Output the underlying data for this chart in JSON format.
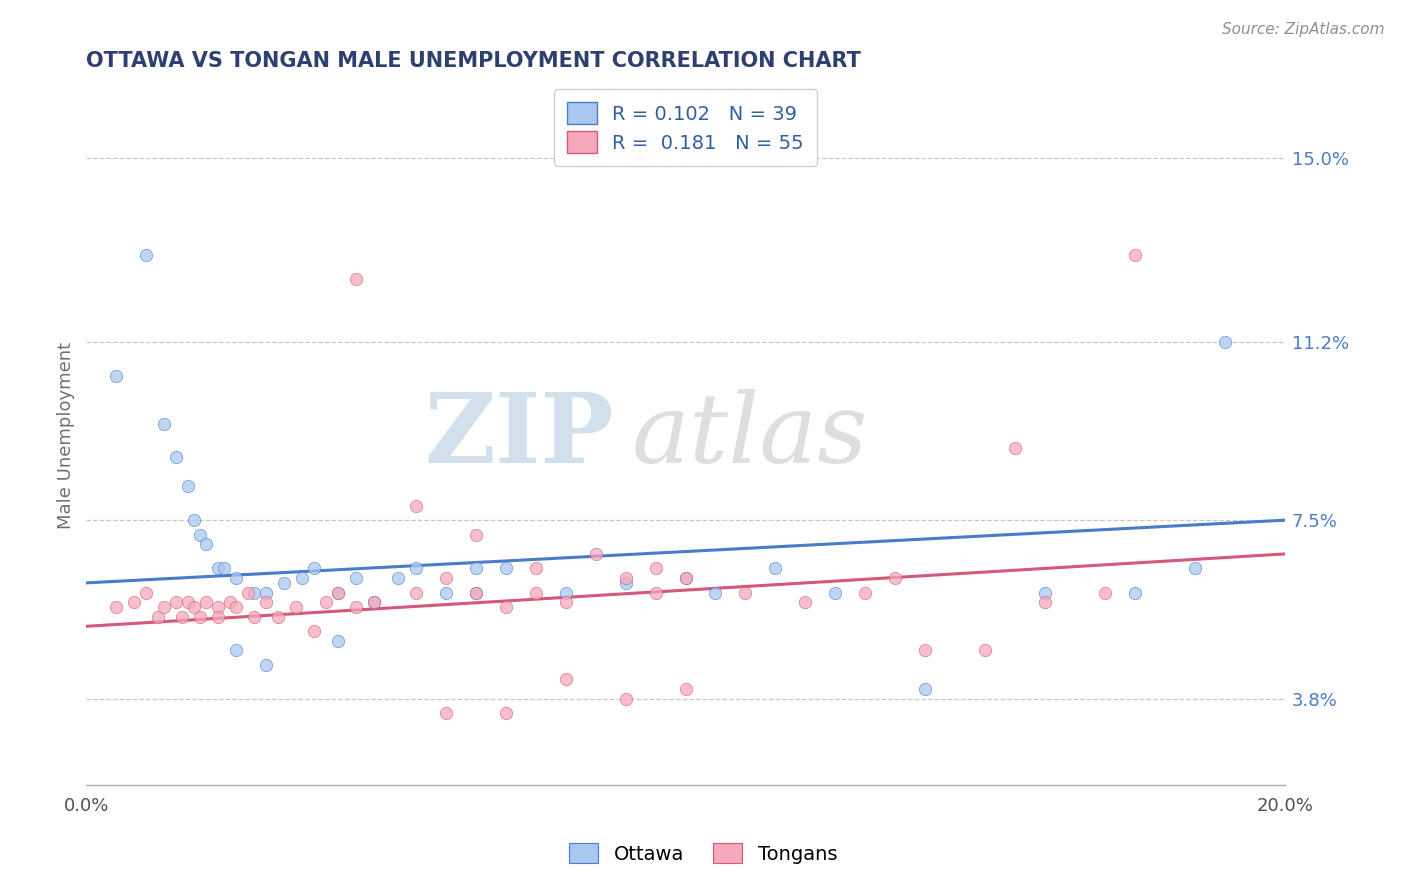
{
  "title": "OTTAWA VS TONGAN MALE UNEMPLOYMENT CORRELATION CHART",
  "source": "Source: ZipAtlas.com",
  "ylabel": "Male Unemployment",
  "xlim": [
    0.0,
    0.2
  ],
  "ylim": [
    0.02,
    0.165
  ],
  "right_yticks": [
    0.038,
    0.075,
    0.112,
    0.15
  ],
  "right_yticklabels": [
    "3.8%",
    "7.5%",
    "11.2%",
    "15.0%"
  ],
  "legend_r1": "0.102",
  "legend_n1": "39",
  "legend_r2": "0.181",
  "legend_n2": "55",
  "ottawa_color": "#a8c8f0",
  "tongans_color": "#f5a8bc",
  "ottawa_line_color": "#4a7cc7",
  "tongans_line_color": "#d45878",
  "title_color": "#2e4070",
  "source_color": "#909090",
  "grid_color": "#c8c8c8",
  "background_color": "#ffffff",
  "ottawa_x": [
    0.005,
    0.01,
    0.013,
    0.015,
    0.017,
    0.018,
    0.019,
    0.02,
    0.022,
    0.023,
    0.025,
    0.028,
    0.03,
    0.033,
    0.036,
    0.038,
    0.042,
    0.045,
    0.048,
    0.052,
    0.055,
    0.06,
    0.065,
    0.065,
    0.07,
    0.08,
    0.09,
    0.1,
    0.105,
    0.115,
    0.125,
    0.14,
    0.16,
    0.175,
    0.185,
    0.19,
    0.042,
    0.025,
    0.03
  ],
  "ottawa_y": [
    0.105,
    0.13,
    0.095,
    0.088,
    0.082,
    0.075,
    0.072,
    0.07,
    0.065,
    0.065,
    0.063,
    0.06,
    0.06,
    0.062,
    0.063,
    0.065,
    0.06,
    0.063,
    0.058,
    0.063,
    0.065,
    0.06,
    0.065,
    0.06,
    0.065,
    0.06,
    0.062,
    0.063,
    0.06,
    0.065,
    0.06,
    0.04,
    0.06,
    0.06,
    0.065,
    0.112,
    0.05,
    0.048,
    0.045
  ],
  "tongans_x": [
    0.005,
    0.008,
    0.01,
    0.012,
    0.013,
    0.015,
    0.016,
    0.017,
    0.018,
    0.019,
    0.02,
    0.022,
    0.022,
    0.024,
    0.025,
    0.027,
    0.028,
    0.03,
    0.032,
    0.035,
    0.038,
    0.04,
    0.042,
    0.045,
    0.048,
    0.055,
    0.06,
    0.065,
    0.07,
    0.075,
    0.08,
    0.09,
    0.095,
    0.1,
    0.11,
    0.12,
    0.135,
    0.155,
    0.16,
    0.17,
    0.175,
    0.13,
    0.14,
    0.15,
    0.055,
    0.065,
    0.075,
    0.085,
    0.095,
    0.045,
    0.06,
    0.07,
    0.08,
    0.09,
    0.1
  ],
  "tongans_y": [
    0.057,
    0.058,
    0.06,
    0.055,
    0.057,
    0.058,
    0.055,
    0.058,
    0.057,
    0.055,
    0.058,
    0.057,
    0.055,
    0.058,
    0.057,
    0.06,
    0.055,
    0.058,
    0.055,
    0.057,
    0.052,
    0.058,
    0.06,
    0.057,
    0.058,
    0.06,
    0.063,
    0.06,
    0.057,
    0.06,
    0.058,
    0.063,
    0.06,
    0.063,
    0.06,
    0.058,
    0.063,
    0.09,
    0.058,
    0.06,
    0.13,
    0.06,
    0.048,
    0.048,
    0.078,
    0.072,
    0.065,
    0.068,
    0.065,
    0.125,
    0.035,
    0.035,
    0.042,
    0.038,
    0.04
  ]
}
